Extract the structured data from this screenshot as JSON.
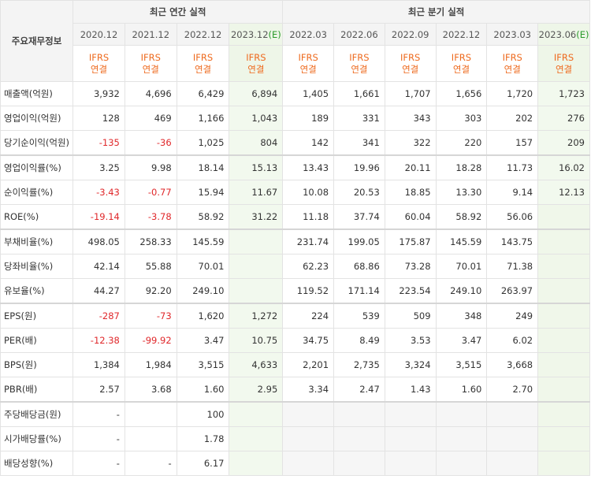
{
  "header": {
    "row_label": "주요재무정보",
    "annual_title": "최근 연간 실적",
    "quarterly_title": "최근 분기 실적",
    "annual_periods": [
      "2020.12",
      "2021.12",
      "2022.12",
      "2023.12"
    ],
    "estimate_mark": "(E)",
    "quarterly_periods": [
      "2022.03",
      "2022.06",
      "2022.09",
      "2022.12",
      "2023.03",
      "2023.06"
    ],
    "qe_mark": "(E)",
    "ifrs": "IFRS",
    "consolidated": "연결"
  },
  "rows": [
    {
      "label": "매출액(억원)",
      "annual": [
        "3,932",
        "4,696",
        "6,429",
        "6,894"
      ],
      "quarterly": [
        "1,405",
        "1,661",
        "1,707",
        "1,656",
        "1,720",
        "1,723"
      ]
    },
    {
      "label": "영업이익(억원)",
      "annual": [
        "128",
        "469",
        "1,166",
        "1,043"
      ],
      "quarterly": [
        "189",
        "331",
        "343",
        "303",
        "202",
        "276"
      ]
    },
    {
      "label": "당기순이익(억원)",
      "annual": [
        "-135",
        "-36",
        "1,025",
        "804"
      ],
      "quarterly": [
        "142",
        "341",
        "322",
        "220",
        "157",
        "209"
      ]
    },
    {
      "label": "영업이익률(%)",
      "annual": [
        "3.25",
        "9.98",
        "18.14",
        "15.13"
      ],
      "quarterly": [
        "13.43",
        "19.96",
        "20.11",
        "18.28",
        "11.73",
        "16.02"
      ]
    },
    {
      "label": "순이익률(%)",
      "annual": [
        "-3.43",
        "-0.77",
        "15.94",
        "11.67"
      ],
      "quarterly": [
        "10.08",
        "20.53",
        "18.85",
        "13.30",
        "9.14",
        "12.13"
      ]
    },
    {
      "label": "ROE(%)",
      "annual": [
        "-19.14",
        "-3.78",
        "58.92",
        "31.22"
      ],
      "quarterly": [
        "11.18",
        "37.74",
        "60.04",
        "58.92",
        "56.06",
        ""
      ]
    },
    {
      "label": "부채비율(%)",
      "annual": [
        "498.05",
        "258.33",
        "145.59",
        ""
      ],
      "quarterly": [
        "231.74",
        "199.05",
        "175.87",
        "145.59",
        "143.75",
        ""
      ]
    },
    {
      "label": "당좌비율(%)",
      "annual": [
        "42.14",
        "55.88",
        "70.01",
        ""
      ],
      "quarterly": [
        "62.23",
        "68.86",
        "73.28",
        "70.01",
        "71.38",
        ""
      ]
    },
    {
      "label": "유보율(%)",
      "annual": [
        "44.27",
        "92.20",
        "249.10",
        ""
      ],
      "quarterly": [
        "119.52",
        "171.14",
        "223.54",
        "249.10",
        "263.97",
        ""
      ]
    },
    {
      "label": "EPS(원)",
      "annual": [
        "-287",
        "-73",
        "1,620",
        "1,272"
      ],
      "quarterly": [
        "224",
        "539",
        "509",
        "348",
        "249",
        ""
      ]
    },
    {
      "label": "PER(배)",
      "annual": [
        "-12.38",
        "-99.92",
        "3.47",
        "10.75"
      ],
      "quarterly": [
        "34.75",
        "8.49",
        "3.53",
        "3.47",
        "6.02",
        ""
      ]
    },
    {
      "label": "BPS(원)",
      "annual": [
        "1,384",
        "1,984",
        "3,515",
        "4,633"
      ],
      "quarterly": [
        "2,201",
        "2,735",
        "3,324",
        "3,515",
        "3,668",
        ""
      ]
    },
    {
      "label": "PBR(배)",
      "annual": [
        "2.57",
        "3.68",
        "1.60",
        "2.95"
      ],
      "quarterly": [
        "3.34",
        "2.47",
        "1.43",
        "1.60",
        "2.70",
        ""
      ]
    },
    {
      "label": "주당배당금(원)",
      "annual": [
        "-",
        "",
        "100",
        ""
      ],
      "quarterly": [
        "",
        "",
        "",
        "",
        "",
        ""
      ]
    },
    {
      "label": "시가배당률(%)",
      "annual": [
        "-",
        "",
        "1.78",
        ""
      ],
      "quarterly": [
        "",
        "",
        "",
        "",
        "",
        ""
      ]
    },
    {
      "label": "배당성향(%)",
      "annual": [
        "-",
        "-",
        "6.17",
        ""
      ],
      "quarterly": [
        "",
        "",
        "",
        "",
        "",
        ""
      ]
    }
  ]
}
